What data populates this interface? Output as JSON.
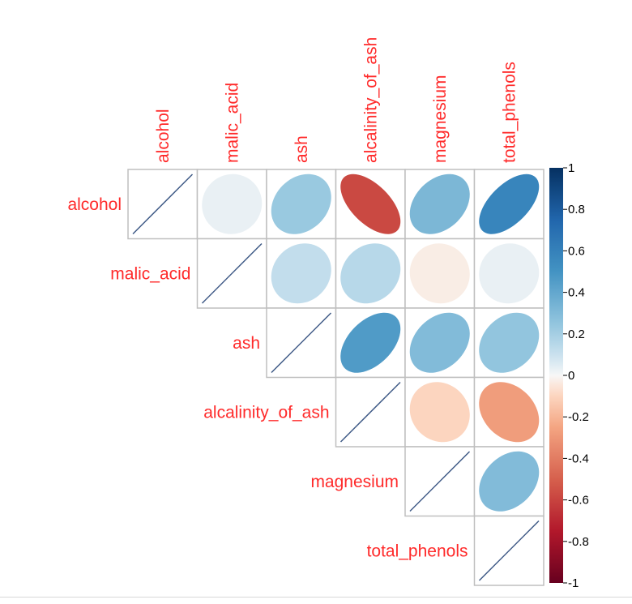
{
  "chart_data": {
    "type": "heatmap",
    "style": "upper-triangle correlation matrix with ellipse glyphs",
    "variables": [
      "alcohol",
      "malic_acid",
      "ash",
      "alcalinity_of_ash",
      "magnesium",
      "total_phenols"
    ],
    "matrix": [
      [
        1.0,
        0.03,
        0.23,
        -0.58,
        0.32,
        0.58
      ],
      [
        0.03,
        1.0,
        0.12,
        0.15,
        -0.03,
        0.03
      ],
      [
        0.23,
        0.12,
        1.0,
        0.46,
        0.3,
        0.25
      ],
      [
        -0.58,
        0.15,
        0.46,
        1.0,
        -0.1,
        -0.28
      ],
      [
        0.32,
        -0.03,
        0.3,
        -0.1,
        1.0,
        0.3
      ],
      [
        0.58,
        0.03,
        0.25,
        -0.28,
        0.3,
        1.0
      ]
    ],
    "colorbar": {
      "ticks": [
        "1",
        "0.8",
        "0.6",
        "0.4",
        "0.2",
        "0",
        "-0.2",
        "-0.4",
        "-0.6",
        "-0.8",
        "-1"
      ],
      "range": [
        -1,
        1
      ],
      "low_color": "#67001f",
      "mid_color": "#f7f7f7",
      "high_color": "#053061"
    },
    "label_color": "#ff2a2a",
    "diagonal_line_color": "#3f5a86",
    "grid_color": "#bfbfbf"
  }
}
